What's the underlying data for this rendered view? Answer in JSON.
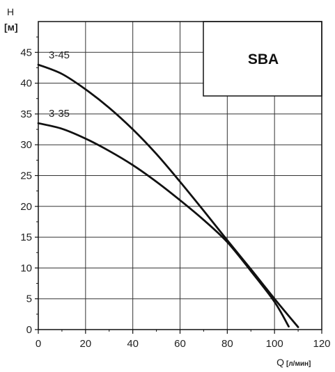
{
  "chart_data": {
    "type": "line",
    "xlabel": "Q",
    "xunit": "[л/мин]",
    "ylabel": "H",
    "yunit": "[м]",
    "xlim": [
      0,
      120
    ],
    "ylim": [
      0,
      50
    ],
    "xticks": [
      0,
      20,
      40,
      60,
      80,
      100,
      120
    ],
    "yticks": [
      0,
      5,
      10,
      15,
      20,
      25,
      30,
      35,
      40,
      45
    ],
    "grid": true,
    "legend_box": "SBA",
    "series": [
      {
        "name": "3-45",
        "color": "#111111",
        "points": [
          [
            0,
            43
          ],
          [
            10,
            41.5
          ],
          [
            20,
            39
          ],
          [
            30,
            36
          ],
          [
            40,
            32.5
          ],
          [
            50,
            28.5
          ],
          [
            60,
            24
          ],
          [
            70,
            19.3
          ],
          [
            80,
            14.5
          ],
          [
            90,
            9.8
          ],
          [
            100,
            5
          ],
          [
            110,
            0.4
          ]
        ]
      },
      {
        "name": "3-35",
        "color": "#111111",
        "points": [
          [
            0,
            33.5
          ],
          [
            10,
            32.6
          ],
          [
            20,
            31
          ],
          [
            30,
            29
          ],
          [
            40,
            26.7
          ],
          [
            50,
            24
          ],
          [
            60,
            21
          ],
          [
            70,
            17.8
          ],
          [
            80,
            14.2
          ],
          [
            90,
            9.5
          ],
          [
            100,
            4.5
          ],
          [
            106,
            0.5
          ]
        ]
      }
    ]
  }
}
